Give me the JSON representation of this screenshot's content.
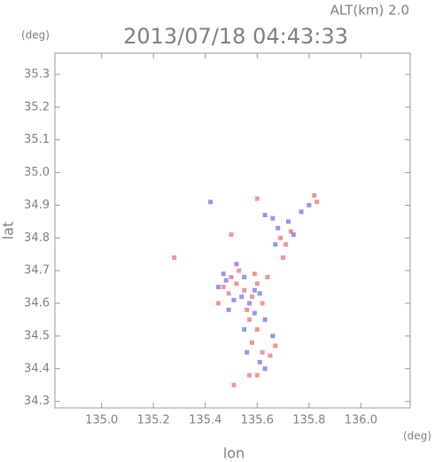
{
  "chart_data": {
    "type": "scatter",
    "title": "2013/07/18 04:43:33",
    "subtitle": "ALT(km) 2.0",
    "xlabel": "lon",
    "ylabel": "lat",
    "xunit": "(deg)",
    "yunit": "(deg)",
    "xlim": [
      134.82,
      136.19
    ],
    "ylim": [
      34.28,
      35.365
    ],
    "xticks": [
      {
        "value": 135.0,
        "label": "135.0"
      },
      135.2,
      135.4,
      135.6,
      135.8,
      {
        "value": 136.0,
        "label": "136.0"
      }
    ],
    "yticks": [
      34.3,
      34.4,
      34.5,
      34.6,
      34.7,
      34.8,
      34.9,
      {
        "value": 35.0,
        "label": "35.0"
      },
      35.1,
      35.2,
      35.3
    ],
    "series": [
      {
        "color": "#f07a7a",
        "x": [
          135.47,
          135.49,
          135.52,
          135.55,
          135.58,
          135.6,
          135.62,
          135.56,
          135.53,
          135.5,
          135.57,
          135.6,
          135.58,
          135.62,
          135.65,
          135.67,
          135.6,
          135.57,
          135.51,
          135.69,
          135.71,
          135.73,
          135.7,
          135.82,
          135.83,
          135.28,
          135.6,
          135.5,
          135.45,
          135.64,
          135.59
        ],
        "values": [
          34.65,
          34.63,
          34.66,
          34.64,
          34.62,
          34.66,
          34.6,
          34.58,
          34.7,
          34.68,
          34.55,
          34.52,
          34.48,
          34.45,
          34.44,
          34.47,
          34.38,
          34.38,
          34.35,
          34.8,
          34.78,
          34.82,
          34.74,
          34.93,
          34.91,
          34.74,
          34.92,
          34.81,
          34.6,
          34.68,
          34.69
        ]
      },
      {
        "color": "#7a7af0",
        "x": [
          135.48,
          135.51,
          135.54,
          135.57,
          135.59,
          135.61,
          135.55,
          135.52,
          135.63,
          135.59,
          135.66,
          135.61,
          135.63,
          135.55,
          135.68,
          135.72,
          135.74,
          135.77,
          135.8,
          135.66,
          135.63,
          135.45,
          135.42,
          135.67,
          135.49,
          135.56,
          135.47
        ],
        "values": [
          34.67,
          34.61,
          34.62,
          34.6,
          34.64,
          34.63,
          34.68,
          34.72,
          34.55,
          34.57,
          34.5,
          34.42,
          34.4,
          34.52,
          34.83,
          34.85,
          34.81,
          34.88,
          34.9,
          34.86,
          34.87,
          34.65,
          34.91,
          34.78,
          34.58,
          34.45,
          34.69
        ]
      }
    ]
  }
}
